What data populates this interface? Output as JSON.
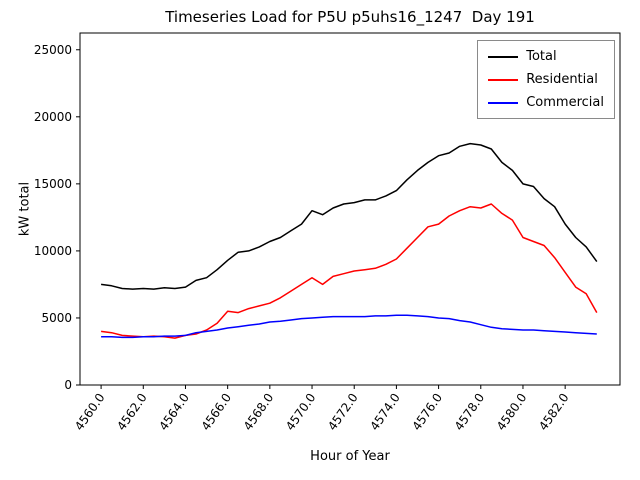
{
  "chart_data": {
    "type": "line",
    "title": "Timeseries Load for P5U p5uhs16_1247  Day 191",
    "xlabel": "Hour of Year",
    "ylabel": "kW total",
    "grid": false,
    "legend_position": "upper right",
    "xlim": [
      4559.0,
      4584.6
    ],
    "ylim": [
      0,
      26250
    ],
    "x_ticks": [
      {
        "value": 4560,
        "label": "4560.0"
      },
      {
        "value": 4562,
        "label": "4562.0"
      },
      {
        "value": 4564,
        "label": "4564.0"
      },
      {
        "value": 4566,
        "label": "4566.0"
      },
      {
        "value": 4568,
        "label": "4568.0"
      },
      {
        "value": 4570,
        "label": "4570.0"
      },
      {
        "value": 4572,
        "label": "4572.0"
      },
      {
        "value": 4574,
        "label": "4574.0"
      },
      {
        "value": 4576,
        "label": "4576.0"
      },
      {
        "value": 4578,
        "label": "4578.0"
      },
      {
        "value": 4580,
        "label": "4580.0"
      },
      {
        "value": 4582,
        "label": "4582.0"
      }
    ],
    "y_ticks": [
      {
        "value": 0,
        "label": "0"
      },
      {
        "value": 5000,
        "label": "5000"
      },
      {
        "value": 10000,
        "label": "10000"
      },
      {
        "value": 15000,
        "label": "15000"
      },
      {
        "value": 20000,
        "label": "20000"
      },
      {
        "value": 25000,
        "label": "25000"
      }
    ],
    "x": [
      4560.0,
      4560.5,
      4561.0,
      4561.5,
      4562.0,
      4562.5,
      4563.0,
      4563.5,
      4564.0,
      4564.5,
      4565.0,
      4565.5,
      4566.0,
      4566.5,
      4567.0,
      4567.5,
      4568.0,
      4568.5,
      4569.0,
      4569.5,
      4570.0,
      4570.5,
      4571.0,
      4571.5,
      4572.0,
      4572.5,
      4573.0,
      4573.5,
      4574.0,
      4574.5,
      4575.0,
      4575.5,
      4576.0,
      4576.5,
      4577.0,
      4577.5,
      4578.0,
      4578.5,
      4579.0,
      4579.5,
      4580.0,
      4580.5,
      4581.0,
      4581.5,
      4582.0,
      4582.5,
      4583.0,
      4583.5
    ],
    "series": [
      {
        "name": "Total",
        "color": "#000000",
        "values": [
          7500,
          7400,
          7200,
          7150,
          7200,
          7150,
          7250,
          7200,
          7300,
          7800,
          8000,
          8600,
          9300,
          9900,
          10000,
          10300,
          10700,
          11000,
          11500,
          12000,
          13000,
          12700,
          13200,
          13500,
          13600,
          13800,
          13800,
          14100,
          14500,
          15300,
          16000,
          16600,
          17100,
          17300,
          17800,
          18000,
          17900,
          17600,
          16600,
          16000,
          15000,
          14800,
          13900,
          13300,
          12000,
          11000,
          10300,
          9200
        ]
      },
      {
        "name": "Residential",
        "color": "#ff0000",
        "values": [
          4000,
          3900,
          3700,
          3650,
          3600,
          3650,
          3600,
          3500,
          3700,
          3800,
          4100,
          4600,
          5500,
          5400,
          5700,
          5900,
          6100,
          6500,
          7000,
          7500,
          8000,
          7500,
          8100,
          8300,
          8500,
          8600,
          8700,
          9000,
          9400,
          10200,
          11000,
          11800,
          12000,
          12600,
          13000,
          13300,
          13200,
          13500,
          12800,
          12300,
          11000,
          10700,
          10400,
          9500,
          8400,
          7300,
          6800,
          5400
        ]
      },
      {
        "name": "Commercial",
        "color": "#0000ff",
        "values": [
          3600,
          3600,
          3550,
          3550,
          3600,
          3600,
          3650,
          3650,
          3700,
          3900,
          4000,
          4100,
          4250,
          4350,
          4450,
          4550,
          4700,
          4750,
          4850,
          4950,
          5000,
          5050,
          5100,
          5100,
          5100,
          5100,
          5150,
          5150,
          5200,
          5200,
          5150,
          5100,
          5000,
          4950,
          4800,
          4700,
          4500,
          4300,
          4200,
          4150,
          4100,
          4100,
          4050,
          4000,
          3950,
          3900,
          3850,
          3800
        ]
      }
    ]
  }
}
